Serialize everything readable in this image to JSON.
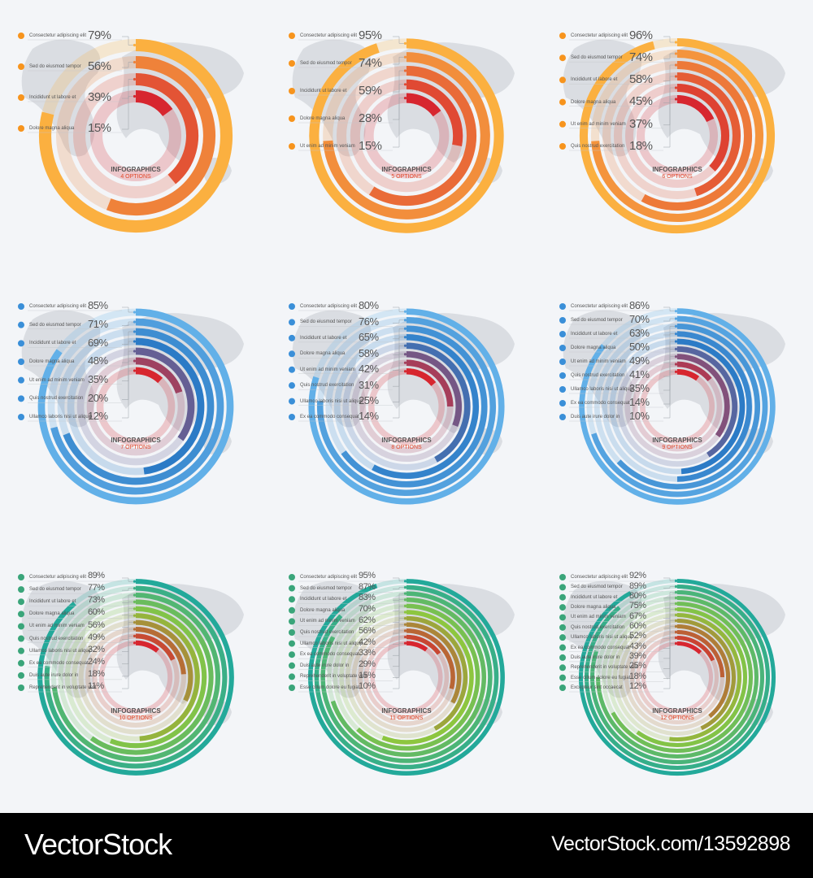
{
  "chart_data": [
    {
      "type": "radial-bar",
      "title": "INFOGRAPHICS",
      "subtitle": "4 OPTIONS",
      "palette": "orange",
      "labels": [
        "Consectetur adipiscing elit",
        "Sed do eiusmod tempor",
        "Incididunt ut labore et",
        "Dolore magna aliqua"
      ],
      "icons": [
        "gear-icon",
        "chat-icon",
        "cloud-icon",
        "person-icon"
      ],
      "values": [
        79,
        56,
        39,
        15
      ]
    },
    {
      "type": "radial-bar",
      "title": "INFOGRAPHICS",
      "subtitle": "5 OPTIONS",
      "palette": "orange",
      "labels": [
        "Consectetur adipiscing elit",
        "Sed do eiusmod tempor",
        "Incididunt ut labore et",
        "Dolore magna aliqua",
        "Ut enim ad minim veniam"
      ],
      "icons": [
        "gear-icon",
        "chat-icon",
        "cloud-icon",
        "person-icon",
        "globe-icon"
      ],
      "values": [
        95,
        74,
        59,
        28,
        15
      ]
    },
    {
      "type": "radial-bar",
      "title": "INFOGRAPHICS",
      "subtitle": "6 OPTIONS",
      "palette": "orange",
      "labels": [
        "Consectetur adipiscing elit",
        "Sed do eiusmod tempor",
        "Incididunt ut labore et",
        "Dolore magna aliqua",
        "Ut enim ad minim veniam",
        "Quis nostrud exercitation"
      ],
      "icons": [
        "gear-icon",
        "chat-icon",
        "mail-icon",
        "person-icon",
        "globe-icon",
        "cloud-icon"
      ],
      "values": [
        96,
        74,
        58,
        45,
        37,
        18
      ]
    },
    {
      "type": "radial-bar",
      "title": "INFOGRAPHICS",
      "subtitle": "7 OPTIONS",
      "palette": "blue",
      "labels": [
        "Consectetur adipiscing elit",
        "Sed do eiusmod tempor",
        "Incididunt ut labore et",
        "Dolore magna aliqua",
        "Ut enim ad minim veniam",
        "Quis nostrud exercitation",
        "Ullamco laboris nisi ut aliquip"
      ],
      "icons": [
        "phone-icon",
        "gear-icon",
        "mail-icon",
        "chat-icon",
        "person-icon",
        "globe-icon",
        "cloud-icon"
      ],
      "values": [
        85,
        71,
        69,
        48,
        35,
        20,
        12
      ]
    },
    {
      "type": "radial-bar",
      "title": "INFOGRAPHICS",
      "subtitle": "8 OPTIONS",
      "palette": "blue",
      "labels": [
        "Consectetur adipiscing elit",
        "Sed do eiusmod tempor",
        "Incididunt ut labore et",
        "Dolore magna aliqua",
        "Ut enim ad minim veniam",
        "Quis nostrud exercitation",
        "Ullamco laboris nisi ut aliquip",
        "Ex ea commodo consequat"
      ],
      "icons": [
        "phone-icon",
        "gear-icon",
        "mail-icon",
        "chat-icon",
        "person-icon",
        "cloud-icon",
        "home-icon",
        "clock-icon"
      ],
      "values": [
        80,
        76,
        65,
        58,
        42,
        31,
        25,
        14
      ]
    },
    {
      "type": "radial-bar",
      "title": "INFOGRAPHICS",
      "subtitle": "9 OPTIONS",
      "palette": "blue",
      "labels": [
        "Consectetur adipiscing elit",
        "Sed do eiusmod tempor",
        "Incididunt ut labore et",
        "Dolore magna aliqua",
        "Ut enim ad minim veniam",
        "Quis nostrud exercitation",
        "Ullamco laboris nisi ut aliquip",
        "Ex ea commodo consequat",
        "Duis aute irure dolor in"
      ],
      "icons": [
        "phone-icon",
        "gear-icon",
        "mail-icon",
        "chat-icon",
        "person-icon",
        "globe-icon",
        "person-icon",
        "home-icon",
        "smile-icon"
      ],
      "values": [
        86,
        70,
        63,
        50,
        49,
        41,
        35,
        14,
        10
      ]
    },
    {
      "type": "radial-bar",
      "title": "INFOGRAPHICS",
      "subtitle": "10 OPTIONS",
      "palette": "green",
      "labels": [
        "Consectetur adipiscing elit",
        "Sed do eiusmod tempor",
        "Incididunt ut labore et",
        "Dolore magna aliqua",
        "Ut enim ad minim veniam",
        "Quis nostrud exercitation",
        "Ullamco laboris nisi ut aliquip",
        "Ex ea commodo consequat",
        "Duis aute irure dolor in",
        "Reprehenderit in voluptate velit"
      ],
      "icons": [
        "person-icon",
        "chat-icon",
        "cloud-icon",
        "card-icon",
        "phone-icon",
        "home-icon",
        "globe-icon",
        "pin-icon",
        "clock-icon",
        "gear-icon"
      ],
      "values": [
        89,
        77,
        73,
        60,
        56,
        49,
        32,
        24,
        18,
        11
      ]
    },
    {
      "type": "radial-bar",
      "title": "INFOGRAPHICS",
      "subtitle": "11 OPTIONS",
      "palette": "green",
      "labels": [
        "Consectetur adipiscing elit",
        "Sed do eiusmod tempor",
        "Incididunt ut labore et",
        "Dolore magna aliqua",
        "Ut enim ad minim veniam",
        "Quis nostrud exercitation",
        "Ullamco laboris nisi ut aliquip",
        "Ex ea commodo consequat",
        "Duis aute irure dolor in",
        "Reprehenderit in voluptate velit",
        "Esse cillum dolore eu fugiat"
      ],
      "icons": [
        "person-icon",
        "chat-icon",
        "cloud-icon",
        "card-icon",
        "chat-icon",
        "phone-icon",
        "home-icon",
        "globe-icon",
        "pin-icon",
        "clock-icon",
        "gear-icon"
      ],
      "values": [
        95,
        87,
        83,
        70,
        62,
        56,
        42,
        33,
        29,
        15,
        10
      ]
    },
    {
      "type": "radial-bar",
      "title": "INFOGRAPHICS",
      "subtitle": "12 OPTIONS",
      "palette": "green",
      "labels": [
        "Consectetur adipiscing elit",
        "Sed do eiusmod tempor",
        "Incididunt ut labore et",
        "Dolore magna aliqua",
        "Ut enim ad minim veniam",
        "Quis nostrud exercitation",
        "Ullamco laboris nisi ut aliquip",
        "Ex ea commodo consequat",
        "Duis aute irure dolor in",
        "Reprehenderit in voluptate velit",
        "Esse cillum dolore eu fugiat",
        "Excepteur sint occaecat"
      ],
      "icons": [
        "person-icon",
        "chat-icon",
        "cloud-icon",
        "card-icon",
        "chat-icon",
        "phone-icon",
        "home-icon",
        "globe-icon",
        "pin-icon",
        "pin-icon",
        "clock-icon",
        "gear-icon"
      ],
      "values": [
        92,
        89,
        80,
        75,
        67,
        60,
        52,
        43,
        39,
        25,
        18,
        12
      ]
    }
  ],
  "palettes": {
    "orange": {
      "outer": "#fbb040",
      "inner": "#d7262f",
      "icon": "#f7941d"
    },
    "blue": {
      "outer": "#62b0e8",
      "inner": "#d7262f",
      "mid": "#2c7bc6",
      "icon": "#3a8fd8"
    },
    "green": {
      "outer": "#23a99a",
      "inner": "#d7262f",
      "mid": "#8dc63f",
      "icon": "#3aa57a"
    }
  },
  "footer": {
    "brand": "VectorStock",
    "credit": "VectorStock.com/13592898"
  }
}
